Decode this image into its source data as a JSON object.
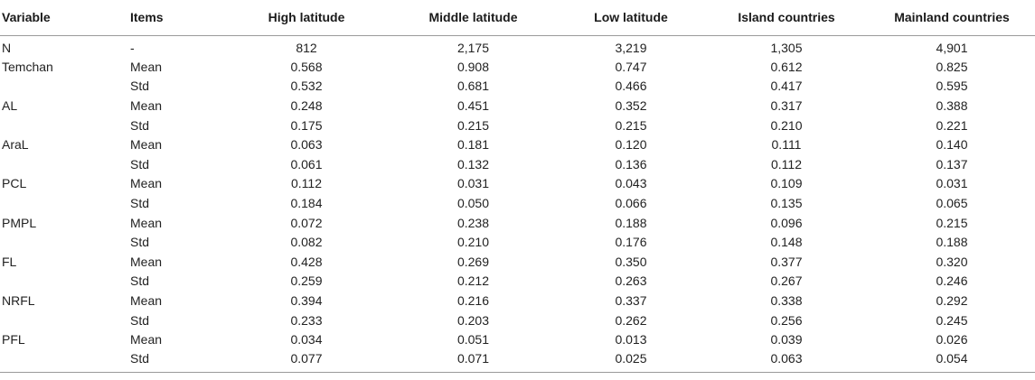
{
  "table": {
    "headers": [
      "Variable",
      "Items",
      "High latitude",
      "Middle latitude",
      "Low latitude",
      "Island countries",
      "Mainland countries"
    ],
    "rows": [
      [
        "N",
        "-",
        "812",
        "2,175",
        "3,219",
        "1,305",
        "4,901"
      ],
      [
        "Temchan",
        "Mean",
        "0.568",
        "0.908",
        "0.747",
        "0.612",
        "0.825"
      ],
      [
        "",
        "Std",
        "0.532",
        "0.681",
        "0.466",
        "0.417",
        "0.595"
      ],
      [
        "AL",
        "Mean",
        "0.248",
        "0.451",
        "0.352",
        "0.317",
        "0.388"
      ],
      [
        "",
        "Std",
        "0.175",
        "0.215",
        "0.215",
        "0.210",
        "0.221"
      ],
      [
        "AraL",
        "Mean",
        "0.063",
        "0.181",
        "0.120",
        "0.111",
        "0.140"
      ],
      [
        "",
        "Std",
        "0.061",
        "0.132",
        "0.136",
        "0.112",
        "0.137"
      ],
      [
        "PCL",
        "Mean",
        "0.112",
        "0.031",
        "0.043",
        "0.109",
        "0.031"
      ],
      [
        "",
        "Std",
        "0.184",
        "0.050",
        "0.066",
        "0.135",
        "0.065"
      ],
      [
        "PMPL",
        "Mean",
        "0.072",
        "0.238",
        "0.188",
        "0.096",
        "0.215"
      ],
      [
        "",
        "Std",
        "0.082",
        "0.210",
        "0.176",
        "0.148",
        "0.188"
      ],
      [
        "FL",
        "Mean",
        "0.428",
        "0.269",
        "0.350",
        "0.377",
        "0.320"
      ],
      [
        "",
        "Std",
        "0.259",
        "0.212",
        "0.263",
        "0.267",
        "0.246"
      ],
      [
        "NRFL",
        "Mean",
        "0.394",
        "0.216",
        "0.337",
        "0.338",
        "0.292"
      ],
      [
        "",
        "Std",
        "0.233",
        "0.203",
        "0.262",
        "0.256",
        "0.245"
      ],
      [
        "PFL",
        "Mean",
        "0.034",
        "0.051",
        "0.013",
        "0.039",
        "0.026"
      ],
      [
        "",
        "Std",
        "0.077",
        "0.071",
        "0.025",
        "0.063",
        "0.054"
      ]
    ]
  }
}
